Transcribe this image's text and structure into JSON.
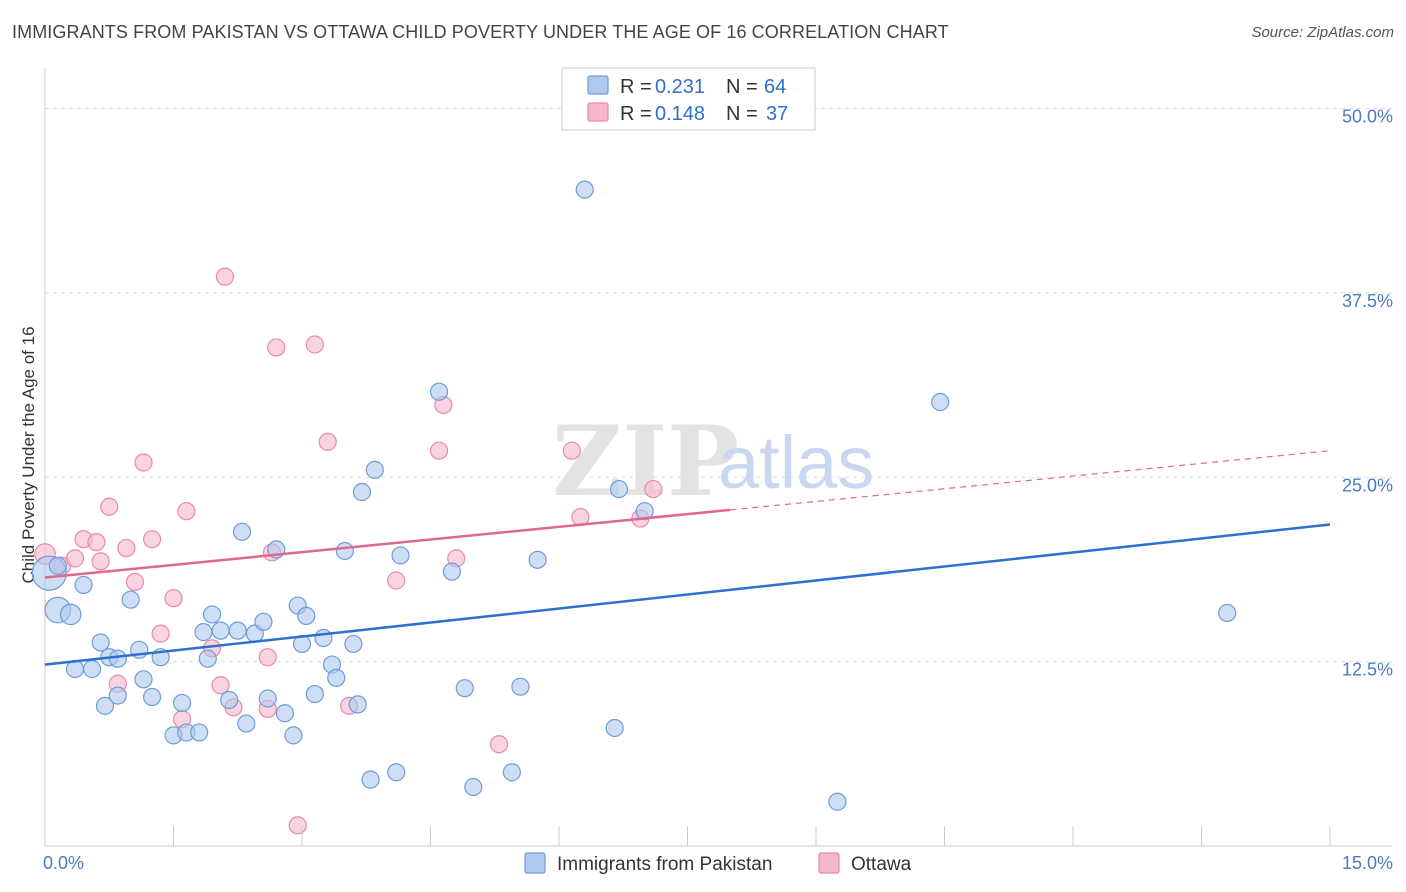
{
  "header": {
    "title": "IMMIGRANTS FROM PAKISTAN VS OTTAWA CHILD POVERTY UNDER THE AGE OF 16 CORRELATION CHART",
    "source": "Source: ZipAtlas.com"
  },
  "watermark": {
    "zip": "ZIP",
    "atlas": "atlas"
  },
  "legend": {
    "r_label": "R =",
    "n_label": "N =",
    "rows": [
      {
        "r": "0.231",
        "n": "64",
        "color": "#aec8ee"
      },
      {
        "r": "0.148",
        "n": "37",
        "color": "#f5b8cb"
      }
    ]
  },
  "colors": {
    "blue_fill": "#aec8ee",
    "blue_stroke": "#6f9bd8",
    "blue_line": "#2f6fce",
    "pink_fill": "#f5b8cb",
    "pink_stroke": "#e88aa8",
    "pink_line": "#e0678e",
    "grid": "#dddddd",
    "axis_text": "#4a7bc4"
  },
  "chart_data": {
    "type": "scatter",
    "title": "IMMIGRANTS FROM PAKISTAN VS OTTAWA CHILD POVERTY UNDER THE AGE OF 16 CORRELATION CHART",
    "xlabel": "",
    "ylabel": "Child Poverty Under the Age of 16",
    "xlim": [
      0,
      15
    ],
    "ylim": [
      0,
      52
    ],
    "x_tick_labels": {
      "min": "0.0%",
      "max": "15.0%"
    },
    "y_ticks": [
      {
        "value": 12.5,
        "label": "12.5%"
      },
      {
        "value": 25.0,
        "label": "25.0%"
      },
      {
        "value": 37.5,
        "label": "37.5%"
      },
      {
        "value": 50.0,
        "label": "50.0%"
      }
    ],
    "grid": true,
    "legend_position": "top-center",
    "series": [
      {
        "name": "Immigrants from Pakistan",
        "r": 0.231,
        "n": 64,
        "trend": {
          "x0": 0,
          "y0": 12.3,
          "x1": 15,
          "y1": 21.8,
          "dash_from": null
        },
        "points": [
          [
            0.05,
            18.5,
            2
          ],
          [
            0.15,
            16.0,
            1.5
          ],
          [
            0.3,
            15.7,
            1.2
          ],
          [
            0.45,
            17.7,
            1
          ],
          [
            0.15,
            19.0,
            1
          ],
          [
            0.65,
            13.8,
            1
          ],
          [
            0.75,
            12.8,
            1
          ],
          [
            0.85,
            12.7,
            1
          ],
          [
            0.35,
            12.0,
            1
          ],
          [
            0.55,
            12.0,
            1
          ],
          [
            0.7,
            9.5,
            1
          ],
          [
            0.85,
            10.2,
            1
          ],
          [
            1.1,
            13.3,
            1
          ],
          [
            1.15,
            11.3,
            1
          ],
          [
            1.25,
            10.1,
            1
          ],
          [
            1.35,
            12.8,
            1
          ],
          [
            1.5,
            7.5,
            1
          ],
          [
            1.6,
            9.7,
            1
          ],
          [
            1.65,
            7.7,
            1
          ],
          [
            1.8,
            7.7,
            1
          ],
          [
            1.9,
            12.7,
            1
          ],
          [
            1.95,
            15.7,
            1
          ],
          [
            2.05,
            14.6,
            1
          ],
          [
            2.15,
            9.9,
            1
          ],
          [
            2.25,
            14.6,
            1
          ],
          [
            2.3,
            21.3,
            1
          ],
          [
            2.35,
            8.3,
            1
          ],
          [
            2.45,
            14.4,
            1
          ],
          [
            2.55,
            15.2,
            1
          ],
          [
            2.6,
            10.0,
            1
          ],
          [
            2.7,
            20.1,
            1
          ],
          [
            2.8,
            9.0,
            1
          ],
          [
            2.9,
            7.5,
            1
          ],
          [
            2.95,
            16.3,
            1
          ],
          [
            3.0,
            13.7,
            1
          ],
          [
            3.05,
            15.6,
            1
          ],
          [
            3.15,
            10.3,
            1
          ],
          [
            3.25,
            14.1,
            1
          ],
          [
            3.35,
            12.3,
            1
          ],
          [
            3.4,
            11.4,
            1
          ],
          [
            3.5,
            20.0,
            1
          ],
          [
            3.6,
            13.7,
            1
          ],
          [
            3.65,
            9.6,
            1
          ],
          [
            3.7,
            24.0,
            1
          ],
          [
            3.8,
            4.5,
            1
          ],
          [
            3.85,
            25.5,
            1
          ],
          [
            4.1,
            5.0,
            1
          ],
          [
            4.15,
            19.7,
            1
          ],
          [
            4.6,
            30.8,
            1
          ],
          [
            4.75,
            18.6,
            1
          ],
          [
            4.9,
            10.7,
            1
          ],
          [
            5.0,
            4.0,
            1
          ],
          [
            5.45,
            5.0,
            1
          ],
          [
            5.55,
            10.8,
            1
          ],
          [
            5.75,
            19.4,
            1
          ],
          [
            6.3,
            44.5,
            1
          ],
          [
            6.65,
            8.0,
            1
          ],
          [
            6.7,
            24.2,
            1
          ],
          [
            7.0,
            22.7,
            1
          ],
          [
            9.25,
            3.0,
            1
          ],
          [
            10.45,
            30.1,
            1
          ],
          [
            13.8,
            15.8,
            1
          ],
          [
            1.85,
            14.5,
            1
          ],
          [
            1.0,
            16.7,
            1
          ]
        ]
      },
      {
        "name": "Ottawa",
        "r": 0.148,
        "n": 37,
        "trend": {
          "x0": 0,
          "y0": 18.2,
          "x1": 15,
          "y1": 26.8,
          "dash_from": 8.0
        },
        "points": [
          [
            0.0,
            19.8,
            1.2
          ],
          [
            0.2,
            19.0,
            1
          ],
          [
            0.35,
            19.5,
            1
          ],
          [
            0.45,
            20.8,
            1
          ],
          [
            0.6,
            20.6,
            1
          ],
          [
            0.65,
            19.3,
            1
          ],
          [
            0.75,
            23.0,
            1
          ],
          [
            0.85,
            11.0,
            1
          ],
          [
            0.95,
            20.2,
            1
          ],
          [
            1.05,
            17.9,
            1
          ],
          [
            1.15,
            26.0,
            1
          ],
          [
            1.25,
            20.8,
            1
          ],
          [
            1.35,
            14.4,
            1
          ],
          [
            1.5,
            16.8,
            1
          ],
          [
            1.6,
            8.6,
            1
          ],
          [
            1.65,
            22.7,
            1
          ],
          [
            1.95,
            13.4,
            1
          ],
          [
            2.05,
            10.9,
            1
          ],
          [
            2.1,
            38.6,
            1
          ],
          [
            2.6,
            9.3,
            1
          ],
          [
            2.6,
            12.8,
            1
          ],
          [
            2.65,
            19.9,
            1
          ],
          [
            2.7,
            33.8,
            1
          ],
          [
            2.95,
            1.4,
            1
          ],
          [
            3.15,
            34.0,
            1
          ],
          [
            3.3,
            27.4,
            1
          ],
          [
            3.55,
            9.5,
            1
          ],
          [
            4.1,
            18.0,
            1
          ],
          [
            4.6,
            26.8,
            1
          ],
          [
            4.65,
            29.9,
            1
          ],
          [
            4.8,
            19.5,
            1
          ],
          [
            5.3,
            6.9,
            1
          ],
          [
            6.15,
            26.8,
            1
          ],
          [
            6.25,
            22.3,
            1
          ],
          [
            6.95,
            22.2,
            1
          ],
          [
            7.1,
            24.2,
            1
          ],
          [
            2.2,
            9.4,
            1
          ]
        ]
      }
    ]
  }
}
